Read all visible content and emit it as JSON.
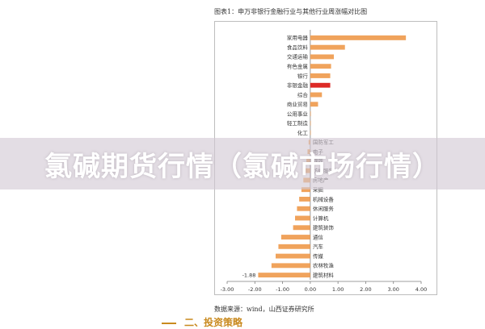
{
  "figure_title": "图表1：申万非银行金融行业与其他行业周涨幅对比图",
  "source_note": "数据来源：wind，山西证券研究所",
  "next_heading": "二、投资策略",
  "banner": {
    "text": "氯碱期货行情（氯碱市场行情）"
  },
  "colors": {
    "bar": "#f0a35c",
    "highlight": "#dd2a26",
    "axis": "#7f7f7f",
    "label": "#333333"
  },
  "chart_data": {
    "type": "bar",
    "orientation": "horizontal",
    "title": "申万非银行金融行业与其他行业周涨幅对比图",
    "xlim": [
      -3.0,
      4.0
    ],
    "xticks": [
      -3.0,
      -2.0,
      -1.0,
      0.0,
      1.0,
      2.0,
      3.0,
      4.0
    ],
    "xtick_labels": [
      "-3.00",
      "-2.00",
      "-1.00",
      "0.00",
      "1.00",
      "2.00",
      "3.00",
      "4.00"
    ],
    "highlight_category": "非银金融",
    "labeled_value": {
      "category": "建筑材料",
      "label": "-1.88"
    },
    "categories": [
      "家用电器",
      "食品饮料",
      "交通运输",
      "有色金属",
      "银行",
      "非银金融",
      "综合",
      "商业贸易",
      "公用事业",
      "轻工制造",
      "化工",
      "国防军工",
      "电子",
      "钢铁",
      "纺织服装",
      "房地产",
      "采掘",
      "机械设备",
      "休闲服务",
      "计算机",
      "建筑装饰",
      "通信",
      "汽车",
      "传媒",
      "农林牧渔",
      "建筑材料"
    ],
    "values": [
      3.45,
      1.25,
      0.85,
      0.75,
      0.72,
      0.72,
      0.42,
      0.28,
      0.02,
      0.01,
      0.01,
      -0.06,
      -0.1,
      -0.14,
      -0.2,
      -0.25,
      -0.32,
      -0.4,
      -0.48,
      -0.55,
      -0.62,
      -1.05,
      -1.15,
      -1.25,
      -1.4,
      -1.88
    ]
  }
}
